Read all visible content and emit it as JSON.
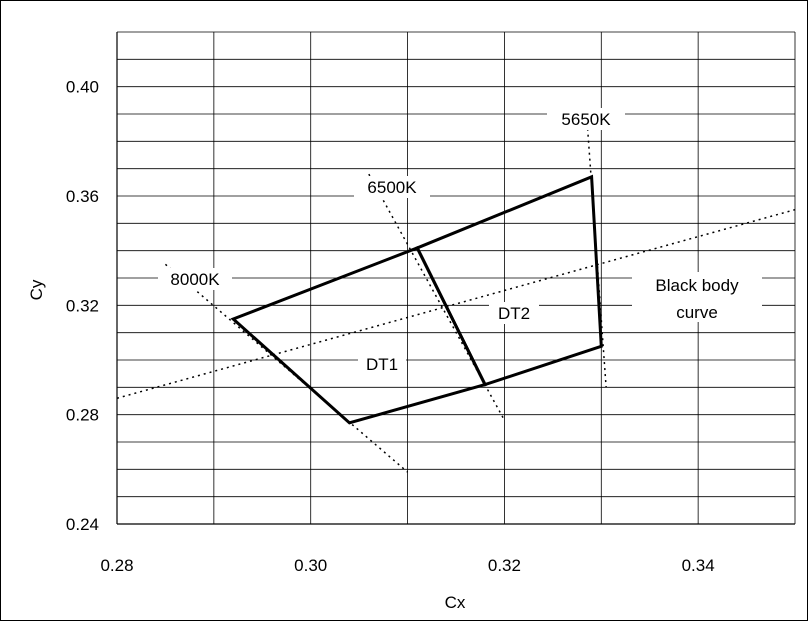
{
  "chart_data": {
    "type": "scatter",
    "title": "",
    "xlabel": "Cx",
    "ylabel": "Cy",
    "xlim": [
      0.28,
      0.35
    ],
    "ylim": [
      0.24,
      0.42
    ],
    "x_ticks": [
      0.28,
      0.3,
      0.32,
      0.34
    ],
    "x_tick_labels": [
      "0.28",
      "0.30",
      "0.32",
      "0.34"
    ],
    "y_ticks": [
      0.24,
      0.28,
      0.32,
      0.36,
      0.4
    ],
    "y_tick_labels": [
      "0.24",
      "0.28",
      "0.32",
      "0.36",
      "0.40"
    ],
    "grid": true,
    "polygons": [
      {
        "name": "DT1",
        "label": "DT1",
        "points": [
          [
            0.292,
            0.315
          ],
          [
            0.311,
            0.341
          ],
          [
            0.318,
            0.291
          ],
          [
            0.304,
            0.277
          ]
        ]
      },
      {
        "name": "DT2",
        "label": "DT2",
        "points": [
          [
            0.311,
            0.341
          ],
          [
            0.329,
            0.367
          ],
          [
            0.33,
            0.305
          ],
          [
            0.318,
            0.291
          ]
        ]
      }
    ],
    "dotted_lines": [
      {
        "name": "black-body-curve",
        "label": "Black body curve",
        "points": [
          [
            0.28,
            0.286
          ],
          [
            0.35,
            0.355
          ]
        ]
      },
      {
        "name": "8000K",
        "label": "8000K",
        "points": [
          [
            0.285,
            0.335
          ],
          [
            0.31,
            0.259
          ]
        ]
      },
      {
        "name": "6500K",
        "label": "6500K",
        "points": [
          [
            0.306,
            0.368
          ],
          [
            0.32,
            0.278
          ]
        ]
      },
      {
        "name": "5650K",
        "label": "5650K",
        "points": [
          [
            0.3285,
            0.389
          ],
          [
            0.3305,
            0.29
          ]
        ]
      }
    ],
    "annotations": [
      "8000K",
      "6500K",
      "5650K",
      "DT1",
      "DT2",
      "Black body",
      "curve"
    ]
  }
}
